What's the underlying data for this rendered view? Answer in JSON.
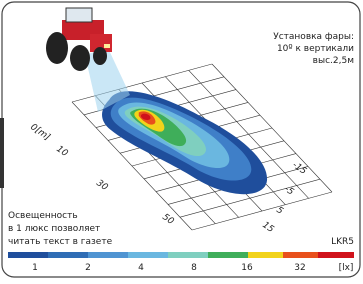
{
  "header": {
    "lines": [
      "Установка фары:",
      "10º к вертикали",
      "выс.2,5м"
    ]
  },
  "distance_labels": [
    "0[m]",
    "10",
    "30",
    "50"
  ],
  "lateral_labels": [
    "-15",
    "-5",
    "5",
    "15"
  ],
  "note": {
    "lines": [
      "Освещенность",
      "в 1 люкс позволяет",
      "читать текст в газете"
    ]
  },
  "model": "LKR5",
  "scale": {
    "labels": [
      "1",
      "2",
      "4",
      "8",
      "16",
      "32",
      "[lx]"
    ]
  }
}
